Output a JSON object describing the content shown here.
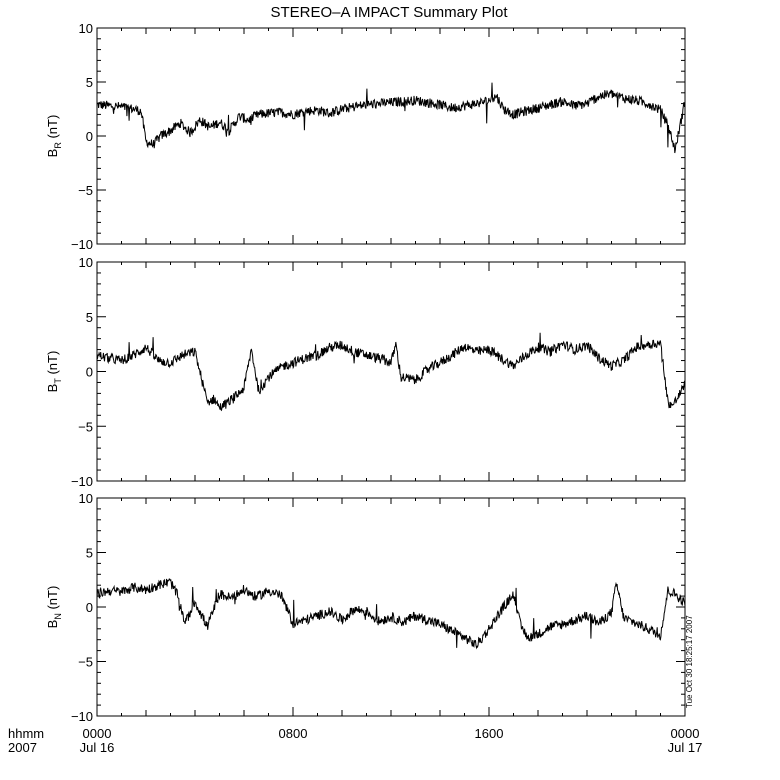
{
  "title": "STEREO–A IMPACT Summary Plot",
  "timestamp": "Tue Oct 30 18:25:17 2007",
  "footer": {
    "time_label": "hhmm",
    "year_label": "2007",
    "x_ticks": [
      {
        "time": "0000",
        "date": "Jul 16"
      },
      {
        "time": "0800",
        "date": ""
      },
      {
        "time": "1600",
        "date": ""
      },
      {
        "time": "0000",
        "date": "Jul 17"
      }
    ]
  },
  "chart_data": [
    {
      "type": "line",
      "panel": "BR",
      "ylabel": {
        "main": "B",
        "sub": "R",
        "unit": " (nT)"
      },
      "ylim": [
        -10,
        10
      ],
      "yticks": [
        "10",
        "5",
        "0",
        "−5",
        "−10"
      ],
      "xlim": [
        0,
        24
      ],
      "x": [
        0,
        0.5,
        1,
        1.5,
        1.8,
        2,
        2.3,
        2.6,
        3,
        3.4,
        3.8,
        4.2,
        4.6,
        5,
        5.4,
        5.8,
        6.2,
        6.6,
        7,
        7.5,
        8,
        8.5,
        9,
        9.5,
        10,
        10.5,
        11,
        11.5,
        12,
        12.5,
        13,
        13.5,
        14,
        14.5,
        15,
        15.5,
        16,
        16.3,
        16.6,
        17,
        17.5,
        18,
        18.5,
        19,
        19.5,
        20,
        20.5,
        21,
        21.5,
        22,
        22.5,
        23,
        23.3,
        23.6,
        23.8,
        24
      ],
      "y": [
        2.9,
        2.8,
        2.7,
        2.5,
        2.3,
        -0.5,
        -0.8,
        0,
        0.5,
        1.2,
        0.3,
        1.5,
        0.8,
        1.3,
        0.5,
        1.8,
        1.5,
        2.0,
        2.1,
        2.2,
        2.0,
        2.3,
        2.4,
        2.1,
        2.5,
        2.7,
        2.9,
        3.0,
        3.1,
        3.2,
        3.3,
        3.1,
        2.9,
        2.6,
        2.8,
        3.0,
        3.3,
        3.7,
        2.5,
        2.0,
        2.3,
        2.6,
        2.9,
        3.2,
        2.8,
        3.0,
        3.7,
        3.9,
        3.5,
        3.3,
        3.0,
        2.4,
        1.0,
        -1.3,
        1.0,
        3.2
      ]
    },
    {
      "type": "line",
      "panel": "BT",
      "ylabel": {
        "main": "B",
        "sub": "T",
        "unit": " (nT)"
      },
      "ylim": [
        -10,
        10
      ],
      "yticks": [
        "10",
        "5",
        "0",
        "−5",
        "−10"
      ],
      "xlim": [
        0,
        24
      ],
      "x": [
        0,
        0.5,
        1,
        1.5,
        2,
        2.5,
        3,
        3.5,
        4,
        4.5,
        4.8,
        5,
        5.3,
        5.7,
        6,
        6.3,
        6.6,
        7,
        7.3,
        7.6,
        8,
        8.5,
        9,
        9.5,
        10,
        10.5,
        11,
        11.5,
        12,
        12.2,
        12.4,
        13,
        13.5,
        14,
        14.5,
        15,
        15.5,
        16,
        16.5,
        17,
        17.5,
        18,
        18.5,
        19,
        19.5,
        20,
        20.5,
        21,
        21.5,
        22,
        22.5,
        23,
        23.3,
        23.5,
        23.7,
        24
      ],
      "y": [
        1.5,
        1.2,
        1.0,
        1.5,
        2.2,
        1.0,
        0.8,
        1.5,
        1.8,
        -2.8,
        -2.5,
        -3.3,
        -2.9,
        -2.2,
        -1.5,
        2.0,
        -1.8,
        -0.5,
        0.0,
        0.5,
        0.8,
        1.2,
        1.5,
        2.2,
        2.4,
        1.8,
        1.5,
        1.2,
        0.8,
        2.5,
        -0.5,
        -0.8,
        0.2,
        0.8,
        1.5,
        2.3,
        1.8,
        2.0,
        1.2,
        0.5,
        1.5,
        2.2,
        1.8,
        2.5,
        2.0,
        2.4,
        1.2,
        0.5,
        1.0,
        2.2,
        2.5,
        2.6,
        -2.8,
        -3.1,
        -2.4,
        -1.2
      ]
    },
    {
      "type": "line",
      "panel": "BN",
      "ylabel": {
        "main": "B",
        "sub": "N",
        "unit": " (nT)"
      },
      "ylim": [
        -10,
        10
      ],
      "yticks": [
        "10",
        "5",
        "0",
        "−5",
        "−10"
      ],
      "xlim": [
        0,
        24
      ],
      "x": [
        0,
        0.5,
        1,
        1.5,
        2,
        2.5,
        3,
        3.3,
        3.6,
        4,
        4.5,
        5,
        5.5,
        6,
        6.5,
        7,
        7.5,
        8,
        8.5,
        9,
        9.5,
        10,
        10.5,
        11,
        11.5,
        12,
        12.5,
        13,
        13.5,
        14,
        14.5,
        15,
        15.5,
        16,
        16.5,
        17,
        17.3,
        17.6,
        18,
        18.5,
        19,
        19.5,
        20,
        20.5,
        21,
        21.2,
        21.5,
        22,
        22.5,
        23,
        23.3,
        23.6,
        24
      ],
      "y": [
        1.2,
        1.5,
        1.4,
        1.8,
        1.6,
        2.0,
        2.3,
        1.0,
        -1.5,
        0.5,
        -1.8,
        1.2,
        0.8,
        1.6,
        0.9,
        1.5,
        1.1,
        -1.5,
        -1.2,
        -0.8,
        -0.4,
        -1.2,
        -0.2,
        -0.4,
        -1.3,
        -0.9,
        -1.4,
        -0.8,
        -1.2,
        -1.6,
        -2.2,
        -2.8,
        -3.5,
        -2.0,
        -0.3,
        1.2,
        -1.8,
        -2.8,
        -2.5,
        -1.8,
        -1.6,
        -1.2,
        -0.8,
        -1.5,
        -0.5,
        2.2,
        -1.0,
        -1.5,
        -2.0,
        -2.6,
        1.5,
        1.2,
        0.3
      ]
    }
  ]
}
